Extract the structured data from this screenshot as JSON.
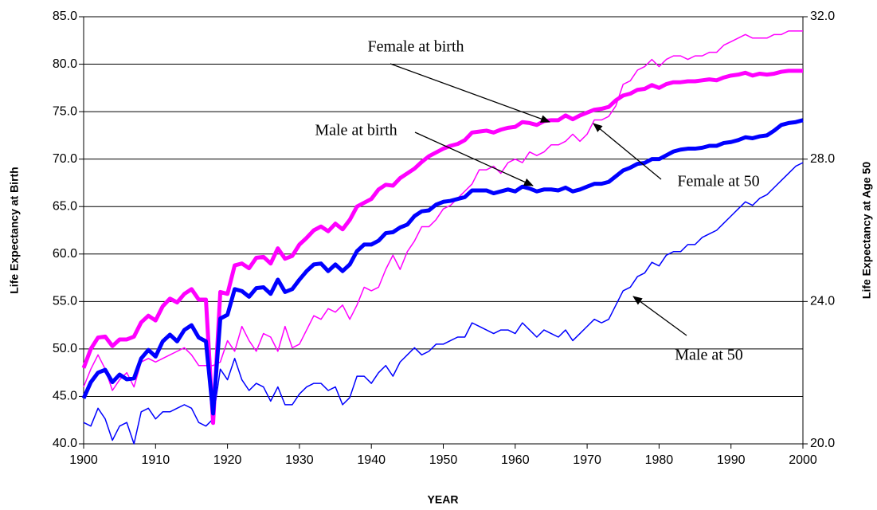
{
  "chart_data": {
    "type": "line",
    "x_label": "YEAR",
    "y_label": "Life Expectancy at Birth",
    "y2_label": "Life Expectancy at Age 50",
    "x": [
      1900,
      1901,
      1902,
      1903,
      1904,
      1905,
      1906,
      1907,
      1908,
      1909,
      1910,
      1911,
      1912,
      1913,
      1914,
      1915,
      1916,
      1917,
      1918,
      1919,
      1920,
      1921,
      1922,
      1923,
      1924,
      1925,
      1926,
      1927,
      1928,
      1929,
      1930,
      1931,
      1932,
      1933,
      1934,
      1935,
      1936,
      1937,
      1938,
      1939,
      1940,
      1941,
      1942,
      1943,
      1944,
      1945,
      1946,
      1947,
      1948,
      1949,
      1950,
      1951,
      1952,
      1953,
      1954,
      1955,
      1956,
      1957,
      1958,
      1959,
      1960,
      1961,
      1962,
      1963,
      1964,
      1965,
      1966,
      1967,
      1968,
      1969,
      1970,
      1971,
      1972,
      1973,
      1974,
      1975,
      1976,
      1977,
      1978,
      1979,
      1980,
      1981,
      1982,
      1983,
      1984,
      1985,
      1986,
      1987,
      1988,
      1989,
      1990,
      1991,
      1992,
      1993,
      1994,
      1995,
      1996,
      1997,
      1998,
      1999,
      2000
    ],
    "series": [
      {
        "name": "Female at birth",
        "color": "#ff00ff",
        "values": [
          48,
          50,
          51.2,
          51.3,
          50.3,
          51,
          51,
          51.3,
          52.8,
          53.5,
          53,
          54.5,
          55.3,
          54.9,
          55.8,
          56.3,
          55.2,
          55.2,
          42.2,
          56,
          55.8,
          58.8,
          59,
          58.5,
          59.6,
          59.7,
          59,
          60.6,
          59.5,
          59.8,
          61,
          61.7,
          62.5,
          62.9,
          62.4,
          63.2,
          62.6,
          63.6,
          65,
          65.4,
          65.8,
          66.8,
          67.3,
          67.2,
          68,
          68.5,
          69,
          69.7,
          70.3,
          70.7,
          71.1,
          71.4,
          71.6,
          72,
          72.8,
          72.9,
          73,
          72.8,
          73.1,
          73.3,
          73.4,
          73.9,
          73.8,
          73.6,
          74,
          74.1,
          74.1,
          74.6,
          74.2,
          74.6,
          74.9,
          75.2,
          75.3,
          75.5,
          76.2,
          76.7,
          76.9,
          77.3,
          77.4,
          77.8,
          77.5,
          77.9,
          78.1,
          78.1,
          78.2,
          78.2,
          78.3,
          78.4,
          78.3,
          78.6,
          78.8,
          78.9,
          79.1,
          78.8,
          79,
          78.9,
          79,
          79.2,
          79.3,
          79.3,
          79.3
        ]
      },
      {
        "name": "Male at birth",
        "color": "#0000ff",
        "values": [
          44.8,
          46.5,
          47.5,
          47.8,
          46.5,
          47.3,
          46.8,
          46.9,
          49,
          49.9,
          49.2,
          50.8,
          51.5,
          50.8,
          52,
          52.5,
          51.2,
          50.8,
          43.2,
          53.2,
          53.6,
          56.3,
          56.1,
          55.5,
          56.4,
          56.5,
          55.8,
          57.3,
          56,
          56.3,
          57.3,
          58.2,
          58.9,
          59,
          58.2,
          58.9,
          58.2,
          58.9,
          60.3,
          61,
          61,
          61.4,
          62.2,
          62.3,
          62.8,
          63.1,
          64,
          64.5,
          64.6,
          65.2,
          65.5,
          65.6,
          65.8,
          66,
          66.7,
          66.7,
          66.7,
          66.4,
          66.6,
          66.8,
          66.6,
          67.1,
          66.9,
          66.6,
          66.8,
          66.8,
          66.7,
          67,
          66.6,
          66.8,
          67.1,
          67.4,
          67.4,
          67.6,
          68.2,
          68.8,
          69.1,
          69.5,
          69.6,
          70,
          70,
          70.4,
          70.8,
          71,
          71.1,
          71.1,
          71.2,
          71.4,
          71.4,
          71.7,
          71.8,
          72,
          72.3,
          72.2,
          72.4,
          72.5,
          73,
          73.6,
          73.8,
          73.9,
          74.1
        ]
      },
      {
        "name": "Female at 50",
        "color": "#ff00ff",
        "axis": "y2",
        "values": [
          21.6,
          22.1,
          22.5,
          22.1,
          21.5,
          21.8,
          22,
          21.6,
          22.3,
          22.4,
          22.3,
          22.4,
          22.5,
          22.6,
          22.7,
          22.5,
          22.2,
          22.2,
          22.2,
          22.3,
          22.9,
          22.6,
          23.3,
          22.9,
          22.6,
          23.1,
          23,
          22.6,
          23.3,
          22.7,
          22.8,
          23.2,
          23.6,
          23.5,
          23.8,
          23.7,
          23.9,
          23.5,
          23.9,
          24.4,
          24.3,
          24.4,
          24.9,
          25.3,
          24.9,
          25.4,
          25.7,
          26.1,
          26.1,
          26.3,
          26.6,
          26.7,
          26.9,
          27.1,
          27.3,
          27.7,
          27.7,
          27.8,
          27.6,
          27.9,
          28,
          27.9,
          28.2,
          28.1,
          28.2,
          28.4,
          28.4,
          28.5,
          28.7,
          28.5,
          28.7,
          29.1,
          29.1,
          29.2,
          29.5,
          30.1,
          30.2,
          30.5,
          30.6,
          30.8,
          30.6,
          30.8,
          30.9,
          30.9,
          30.8,
          30.9,
          30.9,
          31,
          31,
          31.2,
          31.3,
          31.4,
          31.5,
          31.4,
          31.4,
          31.4,
          31.5,
          31.5,
          31.6,
          31.6,
          31.6
        ]
      },
      {
        "name": "Male at 50",
        "color": "#0000ff",
        "axis": "y2",
        "values": [
          20.6,
          20.5,
          21,
          20.7,
          20.1,
          20.5,
          20.6,
          20,
          20.9,
          21,
          20.7,
          20.9,
          20.9,
          21,
          21.1,
          21,
          20.6,
          20.5,
          20.7,
          22.1,
          21.8,
          22.4,
          21.8,
          21.5,
          21.7,
          21.6,
          21.2,
          21.6,
          21.1,
          21.1,
          21.4,
          21.6,
          21.7,
          21.7,
          21.5,
          21.6,
          21.1,
          21.3,
          21.9,
          21.9,
          21.7,
          22,
          22.2,
          21.9,
          22.3,
          22.5,
          22.7,
          22.5,
          22.6,
          22.8,
          22.8,
          22.9,
          23,
          23,
          23.4,
          23.3,
          23.2,
          23.1,
          23.2,
          23.2,
          23.1,
          23.4,
          23.2,
          23,
          23.2,
          23.1,
          23,
          23.2,
          22.9,
          23.1,
          23.3,
          23.5,
          23.4,
          23.5,
          23.9,
          24.3,
          24.4,
          24.7,
          24.8,
          25.1,
          25,
          25.3,
          25.4,
          25.4,
          25.6,
          25.6,
          25.8,
          25.9,
          26,
          26.2,
          26.4,
          26.6,
          26.8,
          26.7,
          26.9,
          27,
          27.2,
          27.4,
          27.6,
          27.8,
          27.9
        ]
      }
    ],
    "xlim": [
      1900,
      2000
    ],
    "xticks": [
      1900,
      1910,
      1920,
      1930,
      1940,
      1950,
      1960,
      1970,
      1980,
      1990,
      2000
    ],
    "ylim": [
      40,
      85
    ],
    "yticks": [
      {
        "value": 40,
        "label": "40.0"
      },
      {
        "value": 45,
        "label": "45.0"
      },
      {
        "value": 50,
        "label": "50.0"
      },
      {
        "value": 55,
        "label": "55.0"
      },
      {
        "value": 60,
        "label": "60.0"
      },
      {
        "value": 65,
        "label": "65.0"
      },
      {
        "value": 70,
        "label": "70.0"
      },
      {
        "value": 75,
        "label": "75.0"
      },
      {
        "value": 80,
        "label": "80.0"
      },
      {
        "value": 85,
        "label": "85.0"
      }
    ],
    "y2lim": [
      20,
      32
    ],
    "y2ticks": [
      {
        "value": 20,
        "label": "20.0"
      },
      {
        "value": 24,
        "label": "24.0"
      },
      {
        "value": 28,
        "label": "28.0"
      },
      {
        "value": 32,
        "label": "32.0"
      }
    ],
    "grid": true
  }
}
